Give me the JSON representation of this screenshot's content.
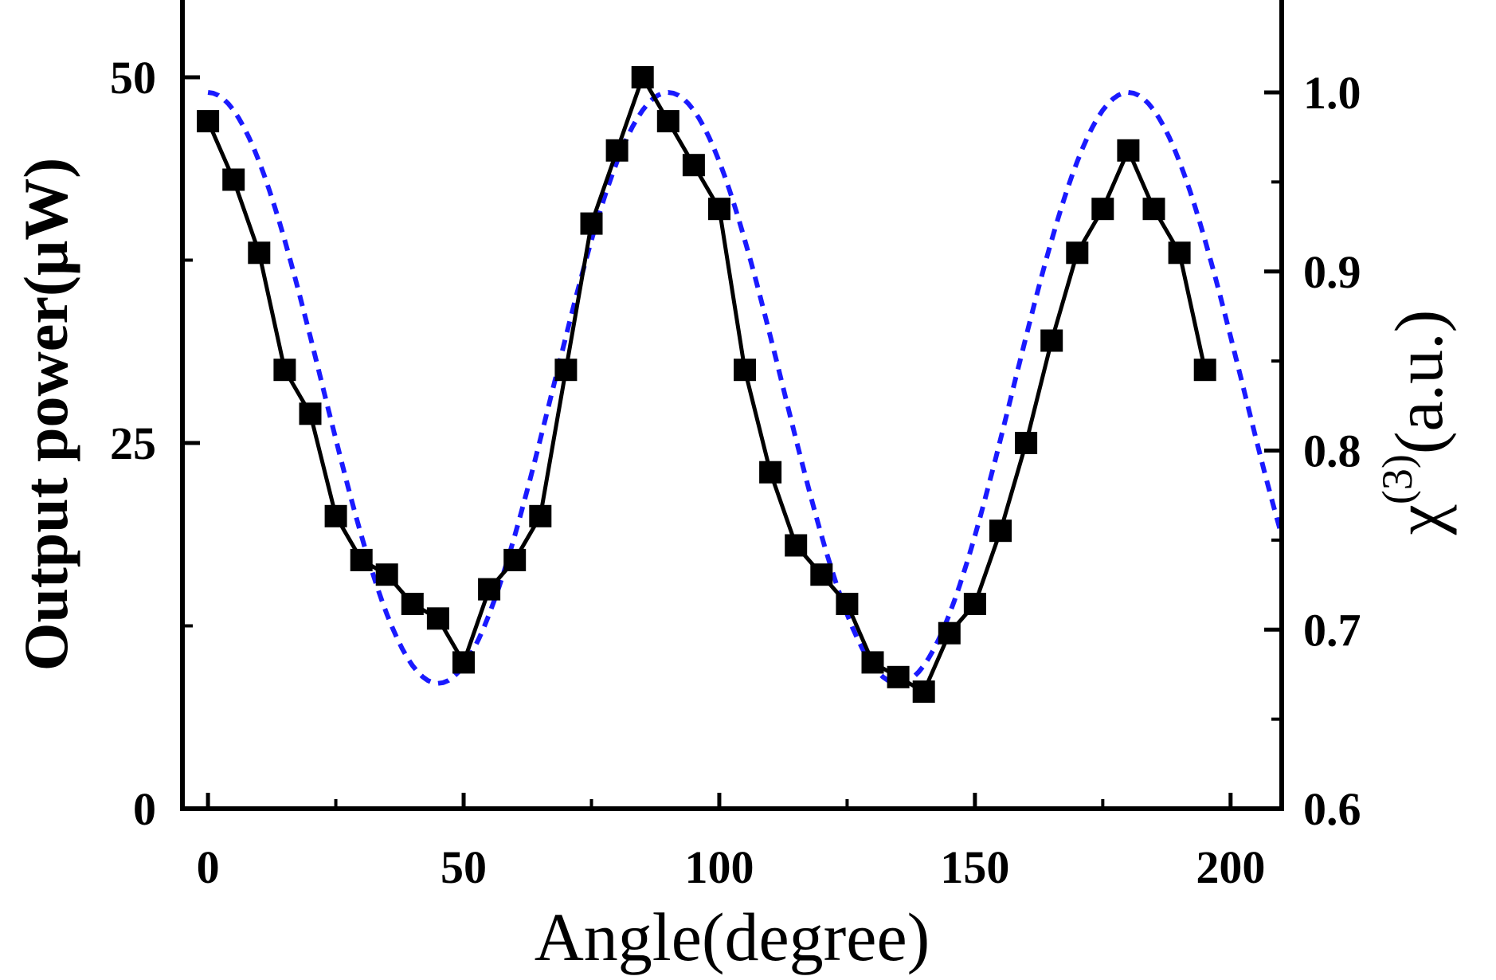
{
  "chart_data": {
    "type": "line",
    "xlabel": "Angle(degree)",
    "ylabel_left": "Output power(μW)",
    "ylabel_right": {
      "symbol": "χ",
      "superscript": "(3)",
      "suffix": "(a.u.)"
    },
    "xlim": [
      -5,
      210
    ],
    "ylim_left": [
      0,
      55
    ],
    "ylim_right": [
      0.6,
      1.0
    ],
    "xticks": [
      0,
      50,
      100,
      150,
      200
    ],
    "yticks_left": [
      0,
      25,
      50
    ],
    "yticks_right": [
      0.6,
      0.7,
      0.8,
      0.9,
      1.0
    ],
    "grid": false,
    "series": [
      {
        "axis": "left",
        "style": "solid-with-square-markers",
        "color": "#000000",
        "x": [
          0,
          5,
          10,
          15,
          20,
          25,
          30,
          35,
          40,
          45,
          50,
          55,
          60,
          65,
          70,
          75,
          80,
          85,
          90,
          95,
          100,
          105,
          110,
          115,
          120,
          125,
          130,
          135,
          140,
          145,
          150,
          155,
          160,
          165,
          170,
          175,
          180,
          185,
          190,
          195
        ],
        "y": [
          47,
          43,
          38,
          30,
          27,
          20,
          17,
          16,
          14,
          13,
          10,
          15,
          17,
          20,
          30,
          40,
          45,
          50,
          47,
          44,
          41,
          30,
          23,
          18,
          16,
          14,
          10,
          9,
          8,
          12,
          14,
          19,
          25,
          32,
          38,
          41,
          45,
          41,
          38,
          30
        ]
      },
      {
        "axis": "right",
        "style": "dashed",
        "color": "#1a1aff",
        "model": {
          "center": 0.835,
          "amplitude": 0.165,
          "period_deg": 90
        }
      }
    ]
  }
}
